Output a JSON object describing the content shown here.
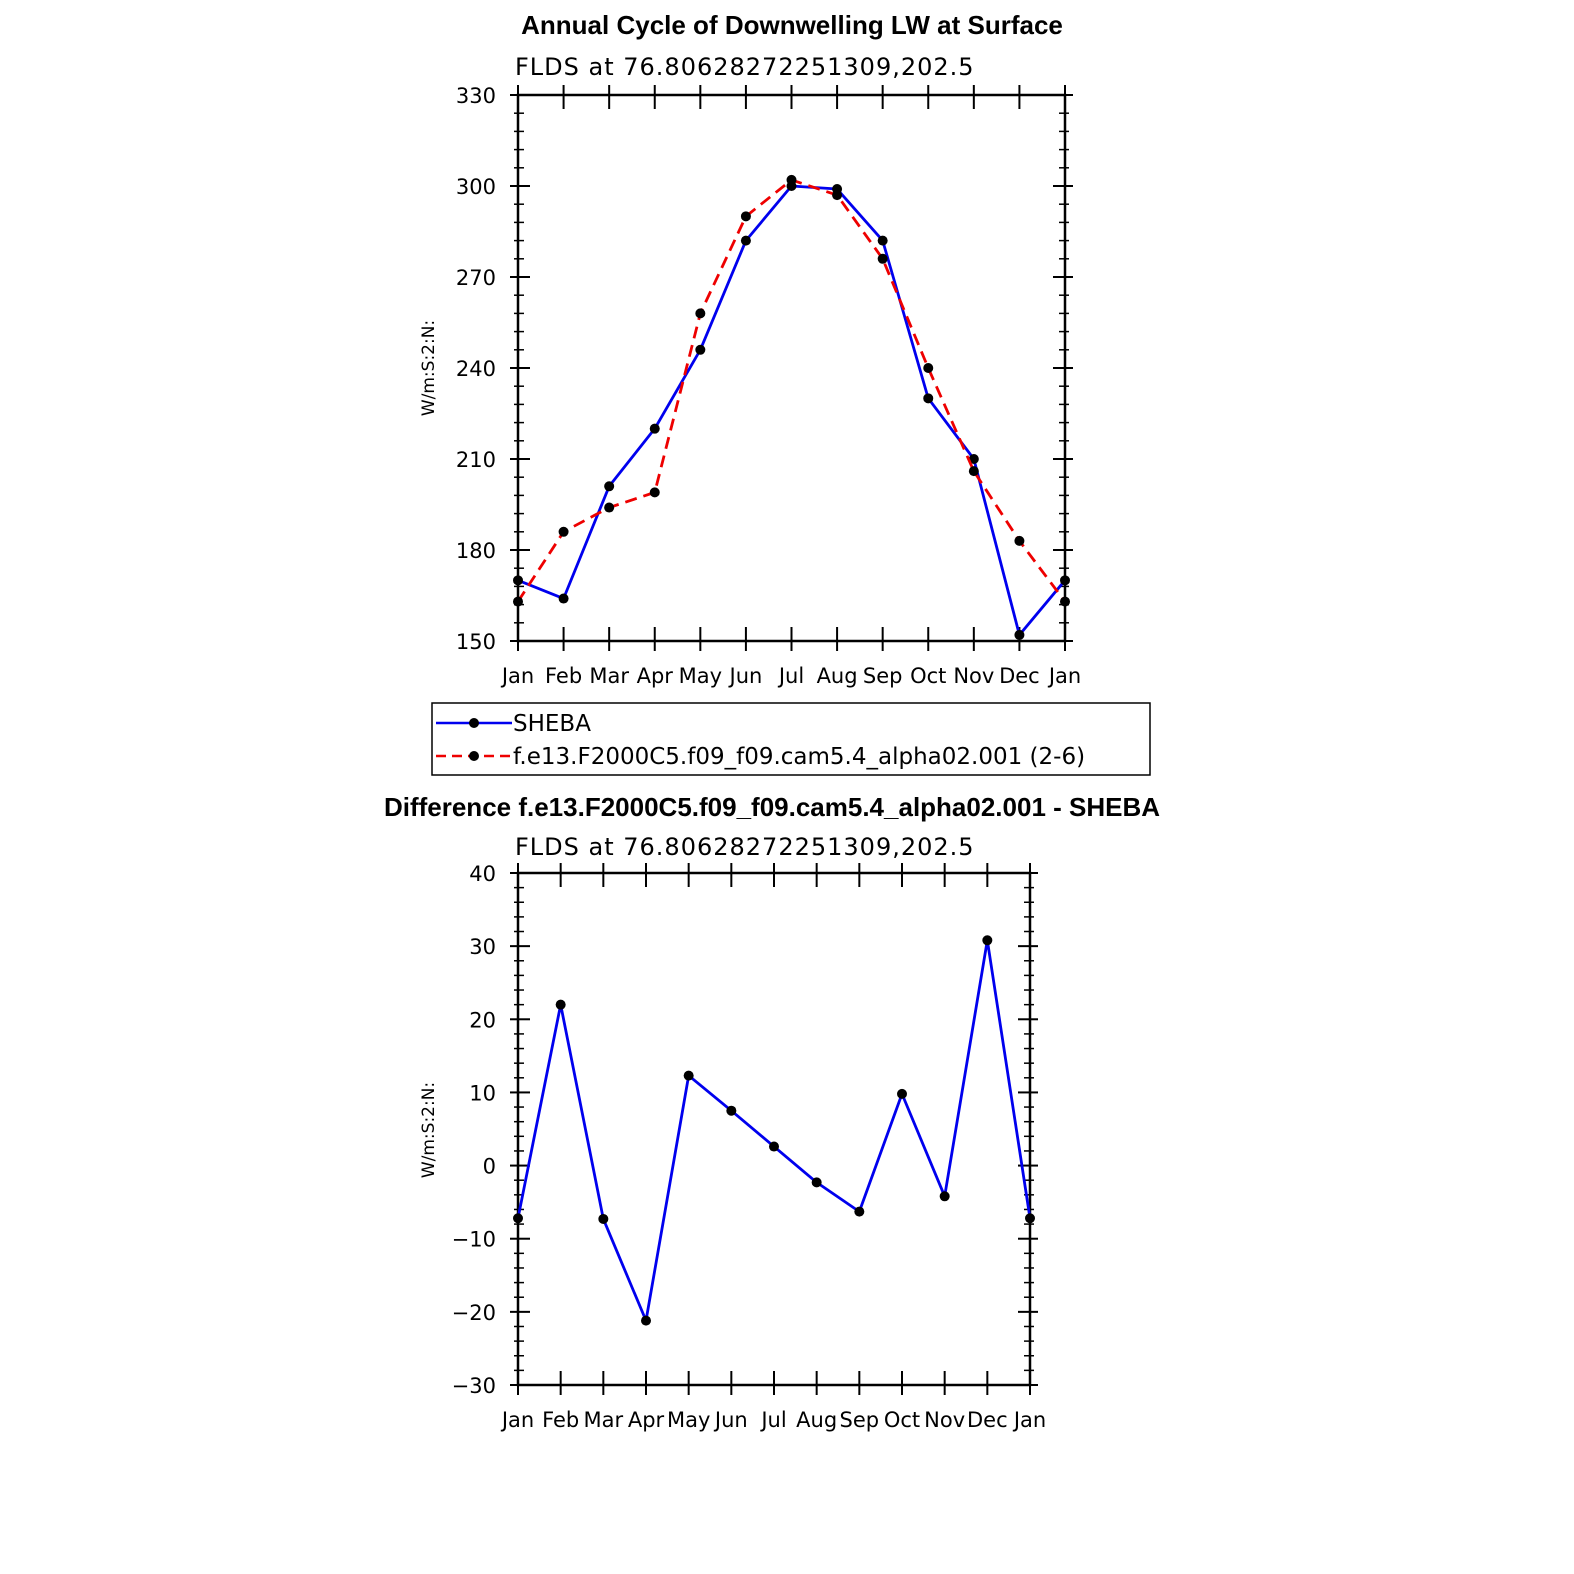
{
  "chart_data": [
    {
      "type": "line",
      "title": "Annual Cycle of Downwelling LW at Surface",
      "subtitle": "FLDS at 76.80628272251309,202.5",
      "ylabel": "W/m:S:2:N:",
      "xlabel": "",
      "categories": [
        "Jan",
        "Feb",
        "Mar",
        "Apr",
        "May",
        "Jun",
        "Jul",
        "Aug",
        "Sep",
        "Oct",
        "Nov",
        "Dec",
        "Jan"
      ],
      "ylim": [
        150,
        330
      ],
      "yticks": [
        "150",
        "180",
        "210",
        "240",
        "270",
        "300",
        "330"
      ],
      "series": [
        {
          "name": "SHEBA",
          "color": "#0000ee",
          "dashed": false,
          "values": [
            170,
            164,
            201,
            220,
            246,
            282,
            300,
            299,
            282,
            230,
            210,
            152,
            170
          ]
        },
        {
          "name": "f.e13.F2000C5.f09_f09.cam5.4_alpha02.001 (2-6)",
          "color": "#ee0000",
          "dashed": true,
          "values": [
            163,
            186,
            194,
            199,
            258,
            290,
            302,
            297,
            276,
            240,
            206,
            183,
            163
          ]
        }
      ],
      "legend": "below"
    },
    {
      "type": "line",
      "title": "Difference f.e13.F2000C5.f09_f09.cam5.4_alpha02.001 - SHEBA",
      "subtitle": "FLDS at 76.80628272251309,202.5",
      "ylabel": "W/m:S:2:N:",
      "xlabel": "",
      "categories": [
        "Jan",
        "Feb",
        "Mar",
        "Apr",
        "May",
        "Jun",
        "Jul",
        "Aug",
        "Sep",
        "Oct",
        "Nov",
        "Dec",
        "Jan"
      ],
      "ylim": [
        -30,
        40
      ],
      "yticks": [
        "−30",
        "−20",
        "−10",
        "0",
        "10",
        "20",
        "30",
        "40"
      ],
      "series": [
        {
          "name": "",
          "color": "#0000ee",
          "dashed": false,
          "values": [
            -7.2,
            22,
            -7.3,
            -21.2,
            12.3,
            7.5,
            2.6,
            -2.3,
            -6.3,
            9.8,
            -4.2,
            30.8,
            -7.2
          ]
        }
      ]
    }
  ]
}
